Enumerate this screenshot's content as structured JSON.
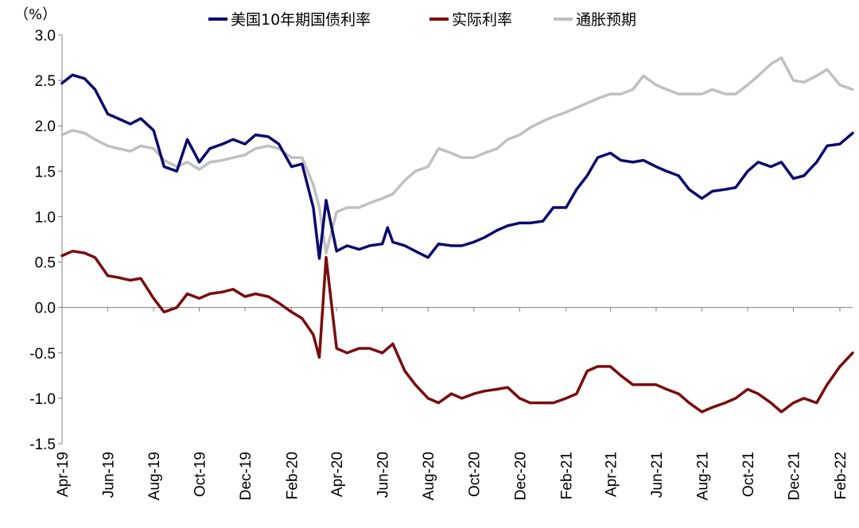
{
  "chart_data": {
    "type": "line",
    "title": "",
    "unit_label": "（%）",
    "xlabel": "",
    "ylabel": "",
    "ylim": [
      -1.5,
      3.0
    ],
    "y_ticks": [
      3.0,
      2.5,
      2.0,
      1.5,
      1.0,
      0.5,
      0.0,
      -0.5,
      -1.0,
      -1.5
    ],
    "y_tick_labels": [
      "3.0",
      "2.5",
      "2.0",
      "1.5",
      "1.0",
      "0.5",
      "0.0",
      "-0.5",
      "-1.0",
      "-1.5"
    ],
    "x_range": [
      "2019-04-01",
      "2022-02-18"
    ],
    "x_ticks": [
      "2019-04-01",
      "2019-06-01",
      "2019-08-01",
      "2019-10-01",
      "2019-12-01",
      "2020-02-01",
      "2020-04-01",
      "2020-06-01",
      "2020-08-01",
      "2020-10-01",
      "2020-12-01",
      "2021-02-01",
      "2021-04-01",
      "2021-06-01",
      "2021-08-01",
      "2021-10-01",
      "2021-12-01",
      "2022-02-01"
    ],
    "x_tick_labels": [
      "Apr-19",
      "Jun-19",
      "Aug-19",
      "Oct-19",
      "Dec-19",
      "Feb-20",
      "Apr-20",
      "Jun-20",
      "Aug-20",
      "Oct-20",
      "Dec-20",
      "Feb-21",
      "Apr-21",
      "Jun-21",
      "Aug-21",
      "Oct-21",
      "Dec-21",
      "Feb-22"
    ],
    "grid": false,
    "legend_position": "top",
    "negative_tick_color": "#ff0000",
    "series": [
      {
        "name": "美国10年期国债利率",
        "color": "#0a0a6e",
        "points": [
          [
            "2019-04-01",
            2.47
          ],
          [
            "2019-04-15",
            2.56
          ],
          [
            "2019-05-01",
            2.52
          ],
          [
            "2019-05-15",
            2.4
          ],
          [
            "2019-06-01",
            2.13
          ],
          [
            "2019-06-15",
            2.08
          ],
          [
            "2019-07-01",
            2.02
          ],
          [
            "2019-07-15",
            2.08
          ],
          [
            "2019-08-01",
            1.95
          ],
          [
            "2019-08-15",
            1.55
          ],
          [
            "2019-09-01",
            1.5
          ],
          [
            "2019-09-15",
            1.85
          ],
          [
            "2019-10-01",
            1.6
          ],
          [
            "2019-10-15",
            1.75
          ],
          [
            "2019-11-01",
            1.8
          ],
          [
            "2019-11-15",
            1.85
          ],
          [
            "2019-12-01",
            1.8
          ],
          [
            "2019-12-15",
            1.9
          ],
          [
            "2020-01-01",
            1.88
          ],
          [
            "2020-01-15",
            1.8
          ],
          [
            "2020-02-01",
            1.55
          ],
          [
            "2020-02-15",
            1.58
          ],
          [
            "2020-03-01",
            1.1
          ],
          [
            "2020-03-09",
            0.54
          ],
          [
            "2020-03-18",
            1.18
          ],
          [
            "2020-04-01",
            0.62
          ],
          [
            "2020-04-15",
            0.68
          ],
          [
            "2020-05-01",
            0.64
          ],
          [
            "2020-05-15",
            0.68
          ],
          [
            "2020-06-01",
            0.7
          ],
          [
            "2020-06-08",
            0.88
          ],
          [
            "2020-06-15",
            0.72
          ],
          [
            "2020-07-01",
            0.68
          ],
          [
            "2020-07-15",
            0.62
          ],
          [
            "2020-08-01",
            0.55
          ],
          [
            "2020-08-15",
            0.7
          ],
          [
            "2020-09-01",
            0.68
          ],
          [
            "2020-09-15",
            0.68
          ],
          [
            "2020-10-01",
            0.72
          ],
          [
            "2020-10-15",
            0.77
          ],
          [
            "2020-11-01",
            0.85
          ],
          [
            "2020-11-15",
            0.9
          ],
          [
            "2020-12-01",
            0.93
          ],
          [
            "2020-12-15",
            0.93
          ],
          [
            "2021-01-01",
            0.95
          ],
          [
            "2021-01-15",
            1.1
          ],
          [
            "2021-02-01",
            1.1
          ],
          [
            "2021-02-15",
            1.3
          ],
          [
            "2021-03-01",
            1.45
          ],
          [
            "2021-03-15",
            1.65
          ],
          [
            "2021-04-01",
            1.7
          ],
          [
            "2021-04-15",
            1.62
          ],
          [
            "2021-05-01",
            1.6
          ],
          [
            "2021-05-15",
            1.62
          ],
          [
            "2021-06-01",
            1.55
          ],
          [
            "2021-06-15",
            1.5
          ],
          [
            "2021-07-01",
            1.45
          ],
          [
            "2021-07-15",
            1.3
          ],
          [
            "2021-08-01",
            1.2
          ],
          [
            "2021-08-15",
            1.28
          ],
          [
            "2021-09-01",
            1.3
          ],
          [
            "2021-09-15",
            1.32
          ],
          [
            "2021-10-01",
            1.5
          ],
          [
            "2021-10-15",
            1.6
          ],
          [
            "2021-11-01",
            1.55
          ],
          [
            "2021-11-15",
            1.6
          ],
          [
            "2021-12-01",
            1.42
          ],
          [
            "2021-12-15",
            1.45
          ],
          [
            "2022-01-01",
            1.6
          ],
          [
            "2022-01-15",
            1.78
          ],
          [
            "2022-02-01",
            1.8
          ],
          [
            "2022-02-18",
            1.92
          ]
        ]
      },
      {
        "name": "实际利率",
        "color": "#7a0c0c",
        "points": [
          [
            "2019-04-01",
            0.57
          ],
          [
            "2019-04-15",
            0.62
          ],
          [
            "2019-05-01",
            0.6
          ],
          [
            "2019-05-15",
            0.55
          ],
          [
            "2019-06-01",
            0.35
          ],
          [
            "2019-06-15",
            0.33
          ],
          [
            "2019-07-01",
            0.3
          ],
          [
            "2019-07-15",
            0.32
          ],
          [
            "2019-08-01",
            0.1
          ],
          [
            "2019-08-15",
            -0.05
          ],
          [
            "2019-09-01",
            0.0
          ],
          [
            "2019-09-15",
            0.15
          ],
          [
            "2019-10-01",
            0.1
          ],
          [
            "2019-10-15",
            0.15
          ],
          [
            "2019-11-01",
            0.17
          ],
          [
            "2019-11-15",
            0.2
          ],
          [
            "2019-12-01",
            0.12
          ],
          [
            "2019-12-15",
            0.15
          ],
          [
            "2020-01-01",
            0.12
          ],
          [
            "2020-01-15",
            0.05
          ],
          [
            "2020-02-01",
            -0.05
          ],
          [
            "2020-02-15",
            -0.12
          ],
          [
            "2020-03-01",
            -0.3
          ],
          [
            "2020-03-09",
            -0.55
          ],
          [
            "2020-03-18",
            0.55
          ],
          [
            "2020-04-01",
            -0.45
          ],
          [
            "2020-04-15",
            -0.5
          ],
          [
            "2020-05-01",
            -0.45
          ],
          [
            "2020-05-15",
            -0.45
          ],
          [
            "2020-06-01",
            -0.5
          ],
          [
            "2020-06-15",
            -0.4
          ],
          [
            "2020-07-01",
            -0.7
          ],
          [
            "2020-07-15",
            -0.85
          ],
          [
            "2020-08-01",
            -1.0
          ],
          [
            "2020-08-15",
            -1.05
          ],
          [
            "2020-09-01",
            -0.95
          ],
          [
            "2020-09-15",
            -1.0
          ],
          [
            "2020-10-01",
            -0.95
          ],
          [
            "2020-10-15",
            -0.92
          ],
          [
            "2020-11-01",
            -0.9
          ],
          [
            "2020-11-15",
            -0.88
          ],
          [
            "2020-12-01",
            -1.0
          ],
          [
            "2020-12-15",
            -1.05
          ],
          [
            "2021-01-01",
            -1.05
          ],
          [
            "2021-01-15",
            -1.05
          ],
          [
            "2021-02-01",
            -1.0
          ],
          [
            "2021-02-15",
            -0.95
          ],
          [
            "2021-03-01",
            -0.7
          ],
          [
            "2021-03-15",
            -0.65
          ],
          [
            "2021-04-01",
            -0.65
          ],
          [
            "2021-04-15",
            -0.75
          ],
          [
            "2021-05-01",
            -0.85
          ],
          [
            "2021-05-15",
            -0.85
          ],
          [
            "2021-06-01",
            -0.85
          ],
          [
            "2021-06-15",
            -0.9
          ],
          [
            "2021-07-01",
            -0.95
          ],
          [
            "2021-07-15",
            -1.05
          ],
          [
            "2021-08-01",
            -1.15
          ],
          [
            "2021-08-15",
            -1.1
          ],
          [
            "2021-09-01",
            -1.05
          ],
          [
            "2021-09-15",
            -1.0
          ],
          [
            "2021-10-01",
            -0.9
          ],
          [
            "2021-10-15",
            -0.95
          ],
          [
            "2021-11-01",
            -1.05
          ],
          [
            "2021-11-15",
            -1.15
          ],
          [
            "2021-12-01",
            -1.05
          ],
          [
            "2021-12-15",
            -1.0
          ],
          [
            "2022-01-01",
            -1.05
          ],
          [
            "2022-01-15",
            -0.85
          ],
          [
            "2022-02-01",
            -0.65
          ],
          [
            "2022-02-18",
            -0.5
          ]
        ]
      },
      {
        "name": "通胀预期",
        "color": "#c0c0c0",
        "points": [
          [
            "2019-04-01",
            1.9
          ],
          [
            "2019-04-15",
            1.95
          ],
          [
            "2019-05-01",
            1.92
          ],
          [
            "2019-05-15",
            1.85
          ],
          [
            "2019-06-01",
            1.78
          ],
          [
            "2019-06-15",
            1.75
          ],
          [
            "2019-07-01",
            1.72
          ],
          [
            "2019-07-15",
            1.78
          ],
          [
            "2019-08-01",
            1.75
          ],
          [
            "2019-08-15",
            1.62
          ],
          [
            "2019-09-01",
            1.55
          ],
          [
            "2019-09-15",
            1.6
          ],
          [
            "2019-10-01",
            1.52
          ],
          [
            "2019-10-15",
            1.6
          ],
          [
            "2019-11-01",
            1.62
          ],
          [
            "2019-11-15",
            1.65
          ],
          [
            "2019-12-01",
            1.68
          ],
          [
            "2019-12-15",
            1.75
          ],
          [
            "2020-01-01",
            1.78
          ],
          [
            "2020-01-15",
            1.75
          ],
          [
            "2020-02-01",
            1.65
          ],
          [
            "2020-02-15",
            1.65
          ],
          [
            "2020-03-01",
            1.35
          ],
          [
            "2020-03-09",
            1.1
          ],
          [
            "2020-03-18",
            0.6
          ],
          [
            "2020-04-01",
            1.05
          ],
          [
            "2020-04-15",
            1.1
          ],
          [
            "2020-05-01",
            1.1
          ],
          [
            "2020-05-15",
            1.15
          ],
          [
            "2020-06-01",
            1.2
          ],
          [
            "2020-06-15",
            1.25
          ],
          [
            "2020-07-01",
            1.4
          ],
          [
            "2020-07-15",
            1.5
          ],
          [
            "2020-08-01",
            1.55
          ],
          [
            "2020-08-15",
            1.75
          ],
          [
            "2020-09-01",
            1.7
          ],
          [
            "2020-09-15",
            1.65
          ],
          [
            "2020-10-01",
            1.65
          ],
          [
            "2020-10-15",
            1.7
          ],
          [
            "2020-11-01",
            1.75
          ],
          [
            "2020-11-15",
            1.85
          ],
          [
            "2020-12-01",
            1.9
          ],
          [
            "2020-12-15",
            1.98
          ],
          [
            "2021-01-01",
            2.05
          ],
          [
            "2021-01-15",
            2.1
          ],
          [
            "2021-02-01",
            2.15
          ],
          [
            "2021-02-15",
            2.2
          ],
          [
            "2021-03-01",
            2.25
          ],
          [
            "2021-03-15",
            2.3
          ],
          [
            "2021-04-01",
            2.35
          ],
          [
            "2021-04-15",
            2.35
          ],
          [
            "2021-05-01",
            2.4
          ],
          [
            "2021-05-15",
            2.55
          ],
          [
            "2021-06-01",
            2.45
          ],
          [
            "2021-06-15",
            2.4
          ],
          [
            "2021-07-01",
            2.35
          ],
          [
            "2021-07-15",
            2.35
          ],
          [
            "2021-08-01",
            2.35
          ],
          [
            "2021-08-15",
            2.4
          ],
          [
            "2021-09-01",
            2.35
          ],
          [
            "2021-09-15",
            2.35
          ],
          [
            "2021-10-01",
            2.45
          ],
          [
            "2021-10-15",
            2.55
          ],
          [
            "2021-11-01",
            2.68
          ],
          [
            "2021-11-15",
            2.75
          ],
          [
            "2021-12-01",
            2.5
          ],
          [
            "2021-12-15",
            2.48
          ],
          [
            "2022-01-01",
            2.55
          ],
          [
            "2022-01-15",
            2.62
          ],
          [
            "2022-02-01",
            2.45
          ],
          [
            "2022-02-18",
            2.4
          ]
        ]
      }
    ]
  }
}
